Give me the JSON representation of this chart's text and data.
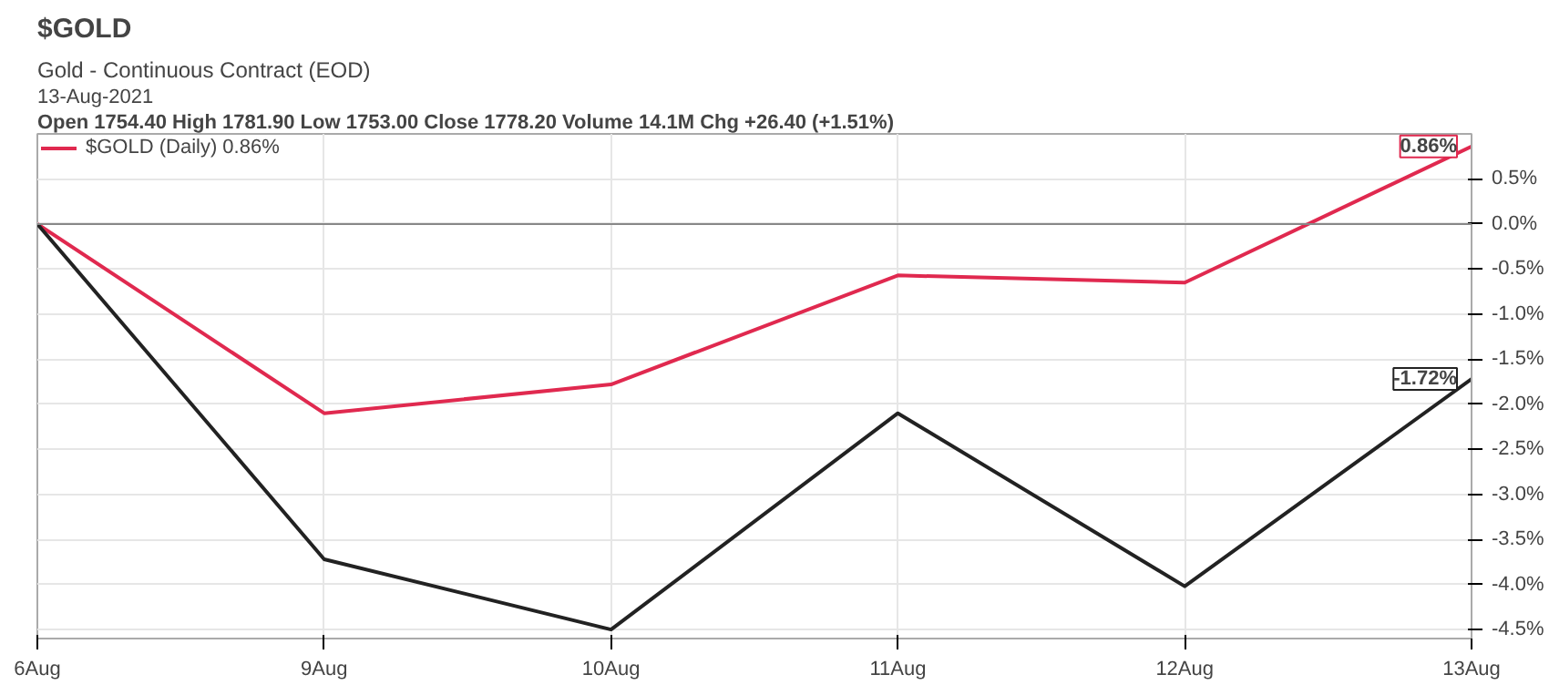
{
  "chart_data": {
    "type": "line",
    "title": "$GOLD",
    "subtitle": "Gold - Continuous Contract (EOD)",
    "annotations": [
      "13-Aug-2021",
      "Open 1754.40  High 1781.90  Low 1753.00  Close 1778.20  Volume 14.1M  Chg +26.40 (+1.51%)",
      {
        "text": "0.86%",
        "x": "13Aug",
        "y": 0.86
      },
      {
        "text": "-1.72%",
        "x": "13Aug",
        "y": -1.72
      }
    ],
    "categories": [
      "6Aug",
      "9Aug",
      "10Aug",
      "11Aug",
      "12Aug",
      "13Aug"
    ],
    "series": [
      {
        "name": "$GOLD (Daily) 0.86%",
        "color": "#e0294f",
        "values": [
          0,
          -2.1,
          -1.78,
          -0.57,
          -0.65,
          0.86
        ]
      },
      {
        "color": "#222222",
        "values": [
          0,
          -3.72,
          -4.5,
          -2.1,
          -4.02,
          -1.72
        ]
      }
    ],
    "ylim": [
      -4.6,
      1.0
    ],
    "yticks": [
      {
        "value": -4.5,
        "label": "-4.5%"
      },
      {
        "value": -4.0,
        "label": "-4.0%"
      },
      {
        "value": -3.5,
        "label": "-3.5%"
      },
      {
        "value": -3.0,
        "label": "-3.0%"
      },
      {
        "value": -2.5,
        "label": "-2.5%"
      },
      {
        "value": -2.0,
        "label": "-2.0%"
      },
      {
        "value": -1.5,
        "label": "-1.5%"
      },
      {
        "value": -1.0,
        "label": "-1.0%"
      },
      {
        "value": -0.5,
        "label": "-0.5%"
      },
      {
        "value": 0.0,
        "label": "0.0%"
      },
      {
        "value": 0.5,
        "label": "0.5%"
      }
    ],
    "ref_lines": [
      {
        "axis": "y",
        "value": 0,
        "color": "#888888"
      }
    ],
    "grid": true,
    "legend": "top left",
    "marker": "none",
    "line_style": "solid"
  }
}
